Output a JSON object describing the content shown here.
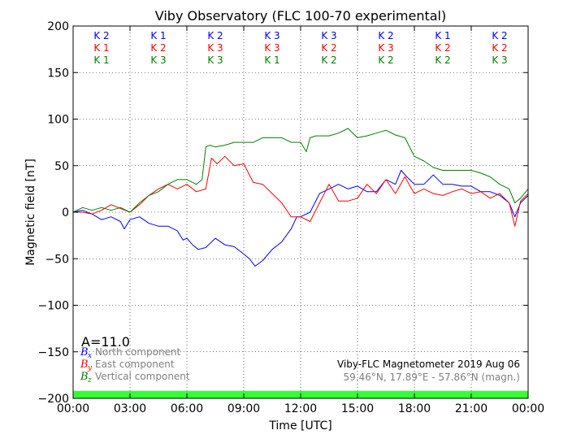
{
  "chart_data": {
    "type": "line",
    "title": "Viby Observatory (FLC 100-70 experimental)",
    "xlabel": "Time [UTC]",
    "ylabel": "Magnetic field [nT]",
    "xlim": [
      0,
      24
    ],
    "ylim": [
      -200,
      200
    ],
    "grid": true,
    "x_ticks": [
      0,
      3,
      6,
      9,
      12,
      15,
      18,
      21,
      24
    ],
    "x_tick_labels": [
      "00:00",
      "03:00",
      "06:00",
      "09:00",
      "12:00",
      "15:00",
      "18:00",
      "21:00",
      "00:00"
    ],
    "y_ticks": [
      200,
      150,
      100,
      50,
      0,
      -50,
      -100,
      -150,
      -200
    ],
    "y_tick_labels": [
      "200",
      "150",
      "100",
      "50",
      "0",
      "−50",
      "−100",
      "−150",
      "−200"
    ],
    "k_rows": [
      {
        "color": "#0000ff",
        "labels": [
          "K 2",
          "K 1",
          "K 2",
          "K 3",
          "K 3",
          "K 2",
          "K 1",
          "K 2"
        ]
      },
      {
        "color": "#ff0000",
        "labels": [
          "K 1",
          "K 2",
          "K 3",
          "K 3",
          "K 2",
          "K 3",
          "K 2",
          "K 2"
        ]
      },
      {
        "color": "#008000",
        "labels": [
          "K 1",
          "K 3",
          "K 3",
          "K 1",
          "K 2",
          "K 2",
          "K 2",
          "K 3"
        ]
      }
    ],
    "a_index": "A=11.0",
    "legend": [
      {
        "symbol": "B",
        "sub": "x",
        "text": "North component",
        "color": "#0000ff"
      },
      {
        "symbol": "B",
        "sub": "y",
        "text": "East component",
        "color": "#ff0000"
      },
      {
        "symbol": "B",
        "sub": "z",
        "text": "Vertical component",
        "color": "#008000"
      }
    ],
    "info_line1": "Viby-FLC Magnetometer 2019 Aug 06",
    "info_line2": "59.46°N, 17.89°E - 57.86°N (magn.)",
    "status_bar_color": "#33ff33",
    "status_bar_range": [
      -200,
      -192
    ],
    "series": [
      {
        "component": "x",
        "color": "#0000ff",
        "x": [
          0,
          0.5,
          1,
          1.5,
          2,
          2.5,
          2.7,
          3,
          3.5,
          4,
          4.5,
          5,
          5.5,
          5.8,
          6,
          6.3,
          6.6,
          7,
          7.5,
          8,
          8.5,
          9,
          9.3,
          9.6,
          10,
          10.5,
          11,
          11.5,
          11.8,
          12,
          12.5,
          13,
          13.5,
          14,
          14.5,
          15,
          15.5,
          16,
          16.5,
          17,
          17.3,
          17.6,
          18,
          18.5,
          19,
          19.5,
          20,
          20.5,
          21,
          21.5,
          22,
          22.5,
          23,
          23.3,
          23.6,
          24
        ],
        "y": [
          0,
          2,
          -2,
          -8,
          -5,
          -10,
          -18,
          -8,
          -5,
          -12,
          -15,
          -15,
          -20,
          -30,
          -28,
          -35,
          -40,
          -38,
          -28,
          -35,
          -37,
          -45,
          -50,
          -58,
          -52,
          -40,
          -32,
          -18,
          -5,
          -5,
          0,
          20,
          25,
          30,
          25,
          28,
          22,
          22,
          35,
          30,
          45,
          38,
          30,
          30,
          40,
          30,
          30,
          28,
          28,
          22,
          22,
          18,
          10,
          -5,
          10,
          18
        ]
      },
      {
        "component": "y",
        "color": "#ff0000",
        "x": [
          0,
          0.5,
          1,
          1.5,
          2,
          2.5,
          3,
          3.5,
          4,
          4.5,
          5,
          5.5,
          6,
          6.5,
          7,
          7.3,
          7.6,
          8,
          8.5,
          9,
          9.5,
          10,
          10.5,
          11,
          11.5,
          12,
          12.5,
          13,
          13.5,
          14,
          14.5,
          15,
          15.5,
          16,
          16.5,
          17,
          17.5,
          18,
          18.5,
          19,
          19.5,
          20,
          20.5,
          21,
          21.5,
          22,
          22.5,
          23,
          23.3,
          23.6,
          24
        ],
        "y": [
          0,
          0,
          -2,
          2,
          8,
          4,
          0,
          8,
          18,
          25,
          30,
          25,
          30,
          22,
          25,
          58,
          52,
          60,
          50,
          52,
          32,
          30,
          20,
          10,
          -5,
          -5,
          -10,
          10,
          30,
          12,
          12,
          15,
          30,
          20,
          35,
          20,
          38,
          20,
          25,
          20,
          18,
          22,
          25,
          20,
          22,
          15,
          20,
          10,
          -15,
          12,
          20
        ]
      },
      {
        "component": "z",
        "color": "#008000",
        "x": [
          0,
          0.5,
          1,
          1.5,
          2,
          2.5,
          3,
          3.5,
          4,
          4.5,
          5,
          5.5,
          6,
          6.5,
          6.8,
          7,
          7.2,
          7.5,
          8,
          8.5,
          9,
          9.5,
          10,
          10.5,
          11,
          11.5,
          12,
          12.3,
          12.5,
          12.8,
          13,
          13.5,
          14,
          14.5,
          15,
          15.5,
          16,
          16.5,
          17,
          17.5,
          18,
          18.5,
          19,
          19.5,
          20,
          20.5,
          21,
          21.5,
          22,
          22.5,
          23,
          23.3,
          23.6,
          24
        ],
        "y": [
          0,
          5,
          2,
          5,
          2,
          5,
          0,
          10,
          18,
          22,
          30,
          35,
          35,
          30,
          35,
          70,
          72,
          70,
          72,
          75,
          75,
          75,
          80,
          80,
          80,
          75,
          75,
          65,
          80,
          82,
          82,
          82,
          85,
          90,
          80,
          82,
          85,
          88,
          83,
          80,
          60,
          55,
          48,
          45,
          45,
          45,
          45,
          42,
          38,
          30,
          25,
          10,
          15,
          25
        ]
      }
    ]
  }
}
